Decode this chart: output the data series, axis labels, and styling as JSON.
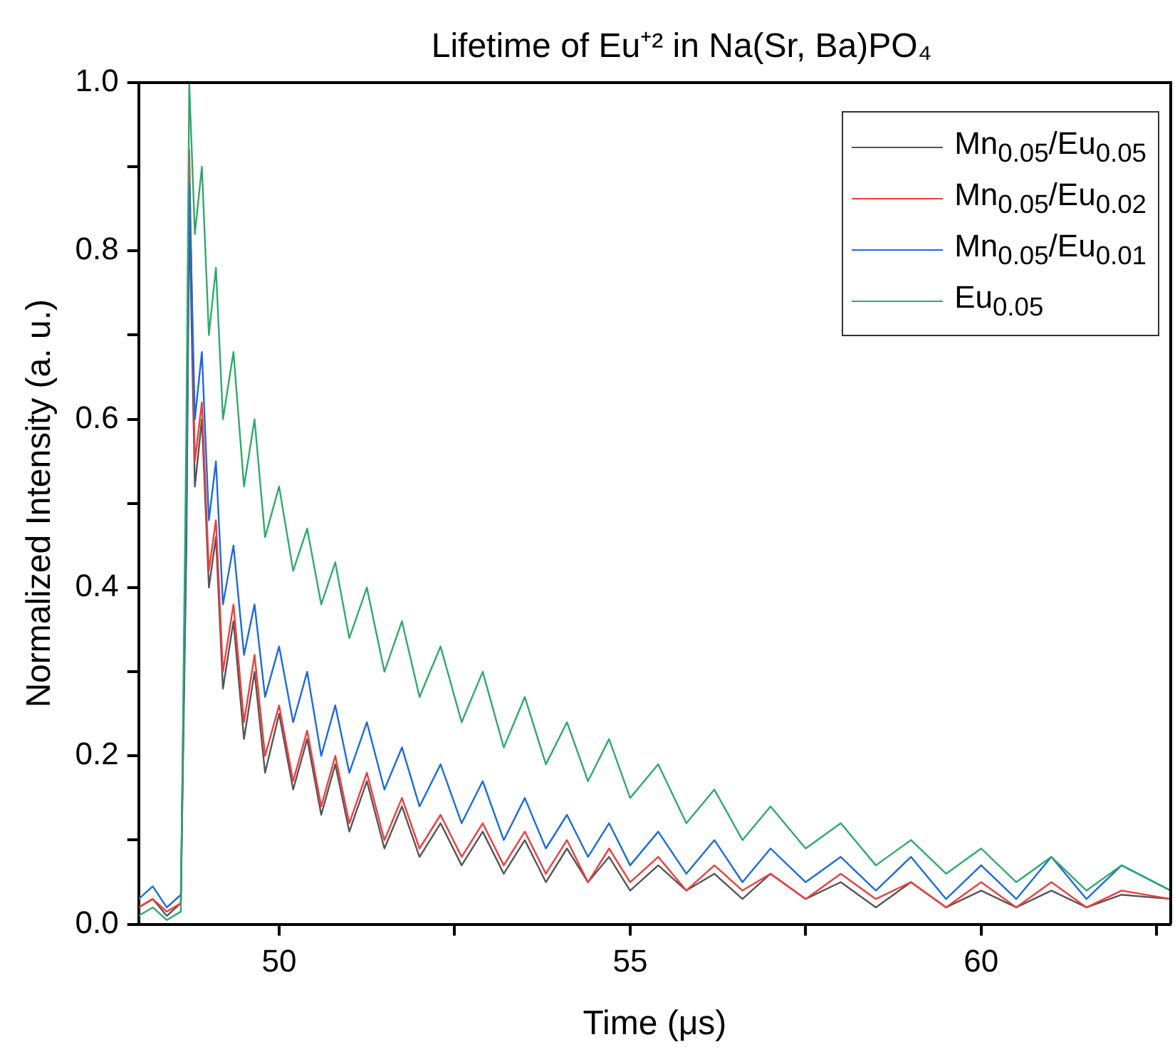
{
  "chart_data": {
    "type": "line",
    "title": "Lifetime of Eu⁺² in Na(Sr, Ba)PO₄",
    "xlabel": "Time (μs)",
    "ylabel": "Normalized Intensity (a. u.)",
    "x": [
      48.0,
      48.2,
      48.4,
      48.6,
      48.68,
      48.72,
      48.8,
      48.9,
      49.0,
      49.1,
      49.2,
      49.35,
      49.5,
      49.65,
      49.8,
      50.0,
      50.2,
      50.4,
      50.6,
      50.8,
      51.0,
      51.25,
      51.5,
      51.75,
      52.0,
      52.3,
      52.6,
      52.9,
      53.2,
      53.5,
      53.8,
      54.1,
      54.4,
      54.7,
      55.0,
      55.4,
      55.8,
      56.2,
      56.6,
      57.0,
      57.5,
      58.0,
      58.5,
      59.0,
      59.5,
      60.0,
      60.5,
      61.0,
      61.5,
      62.0,
      62.7
    ],
    "series": [
      {
        "name": "Mn$_{0.05}$/Eu$_{0.05}$",
        "color": "#555555",
        "values": [
          0.02,
          0.03,
          0.01,
          0.025,
          0.45,
          0.85,
          0.52,
          0.6,
          0.4,
          0.46,
          0.28,
          0.36,
          0.22,
          0.3,
          0.18,
          0.25,
          0.16,
          0.22,
          0.13,
          0.19,
          0.11,
          0.17,
          0.09,
          0.14,
          0.08,
          0.12,
          0.07,
          0.11,
          0.06,
          0.1,
          0.05,
          0.09,
          0.05,
          0.08,
          0.04,
          0.07,
          0.04,
          0.06,
          0.03,
          0.06,
          0.03,
          0.05,
          0.02,
          0.05,
          0.02,
          0.04,
          0.02,
          0.04,
          0.02,
          0.035,
          0.03
        ]
      },
      {
        "name": "Mn$_{0.05}$/Eu$_{0.02}$",
        "color": "#f03c3c",
        "values": [
          0.02,
          0.03,
          0.015,
          0.025,
          0.5,
          0.92,
          0.55,
          0.62,
          0.42,
          0.48,
          0.3,
          0.38,
          0.24,
          0.32,
          0.2,
          0.26,
          0.17,
          0.23,
          0.14,
          0.2,
          0.12,
          0.18,
          0.1,
          0.15,
          0.09,
          0.13,
          0.08,
          0.12,
          0.07,
          0.11,
          0.06,
          0.1,
          0.05,
          0.09,
          0.05,
          0.08,
          0.04,
          0.07,
          0.04,
          0.06,
          0.03,
          0.06,
          0.03,
          0.05,
          0.02,
          0.05,
          0.02,
          0.05,
          0.02,
          0.04,
          0.03
        ]
      },
      {
        "name": "Mn$_{0.05}$/Eu$_{0.01}$",
        "color": "#1a6ae0",
        "values": [
          0.03,
          0.045,
          0.02,
          0.035,
          0.5,
          0.88,
          0.6,
          0.68,
          0.48,
          0.55,
          0.38,
          0.45,
          0.32,
          0.38,
          0.27,
          0.33,
          0.24,
          0.3,
          0.2,
          0.26,
          0.18,
          0.24,
          0.16,
          0.21,
          0.14,
          0.19,
          0.12,
          0.17,
          0.1,
          0.15,
          0.09,
          0.13,
          0.08,
          0.12,
          0.07,
          0.11,
          0.06,
          0.1,
          0.05,
          0.09,
          0.05,
          0.08,
          0.04,
          0.08,
          0.03,
          0.07,
          0.03,
          0.08,
          0.03,
          0.07,
          0.04
        ]
      },
      {
        "name": "Eu$_{0.05}$",
        "color": "#2eaa6a",
        "values": [
          0.01,
          0.02,
          0.005,
          0.015,
          0.6,
          1.0,
          0.82,
          0.9,
          0.7,
          0.78,
          0.6,
          0.68,
          0.52,
          0.6,
          0.46,
          0.52,
          0.42,
          0.47,
          0.38,
          0.43,
          0.34,
          0.4,
          0.3,
          0.36,
          0.27,
          0.33,
          0.24,
          0.3,
          0.21,
          0.27,
          0.19,
          0.24,
          0.17,
          0.22,
          0.15,
          0.19,
          0.12,
          0.16,
          0.1,
          0.14,
          0.09,
          0.12,
          0.07,
          0.1,
          0.06,
          0.09,
          0.05,
          0.08,
          0.04,
          0.07,
          0.04
        ]
      }
    ],
    "xlim": [
      48,
      62.7
    ],
    "xticks": [
      50,
      {
        "value": 52.5,
        "label": null
      },
      55,
      {
        "value": 57.5,
        "label": null
      },
      60,
      {
        "value": 62.5,
        "label": null
      }
    ],
    "ylim": [
      0,
      1
    ],
    "yticks": [
      {
        "value": 0,
        "label": "0.0"
      },
      {
        "value": 0.1,
        "label": null
      },
      {
        "value": 0.2,
        "label": "0.2"
      },
      {
        "value": 0.3,
        "label": null
      },
      {
        "value": 0.4,
        "label": "0.4"
      },
      {
        "value": 0.5,
        "label": null
      },
      {
        "value": 0.6,
        "label": "0.6"
      },
      {
        "value": 0.7,
        "label": null
      },
      {
        "value": 0.8,
        "label": "0.8"
      },
      {
        "value": 0.9,
        "label": null
      },
      {
        "value": 1,
        "label": "1.0"
      }
    ],
    "grid": false,
    "legend": "top right"
  }
}
